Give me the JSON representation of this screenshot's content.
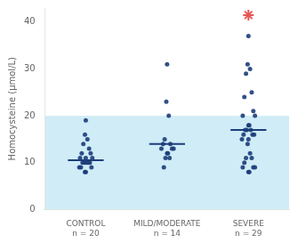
{
  "chart_data": {
    "type": "scatter",
    "ylabel": "Homocysteine (μmol/L)",
    "categories": [
      "CONTROL\nn = 20",
      "MILD/MODERATE\nn = 14",
      "SEVERE\nn = 29"
    ],
    "values": [
      [
        19,
        16,
        15,
        14,
        13,
        12,
        12,
        11,
        11,
        11,
        10,
        10,
        10,
        10,
        10,
        9,
        9,
        9,
        8,
        8
      ],
      [
        31,
        23,
        20,
        15,
        14,
        14,
        13,
        13,
        13,
        12,
        12,
        11,
        11,
        9
      ],
      [
        37,
        31,
        30,
        29,
        25,
        24,
        21,
        20,
        20,
        18,
        18,
        17,
        17,
        17,
        16,
        16,
        16,
        15,
        15,
        14,
        12,
        11,
        11,
        10,
        9,
        9,
        9,
        8,
        8
      ]
    ],
    "means": [
      10.5,
      14.0,
      17.0
    ],
    "color": "#1c3d7a",
    "outliers": [
      {
        "category": "SEVERE\nn = 29",
        "y": 41.5,
        "color": "#e85555",
        "marker": "star"
      }
    ],
    "bands": [
      {
        "from": 0,
        "to": 20,
        "color": "#aaddf0"
      }
    ],
    "ylim": [
      0,
      43
    ],
    "yticks": [
      0,
      10,
      20,
      30,
      40
    ],
    "grid": false
  }
}
